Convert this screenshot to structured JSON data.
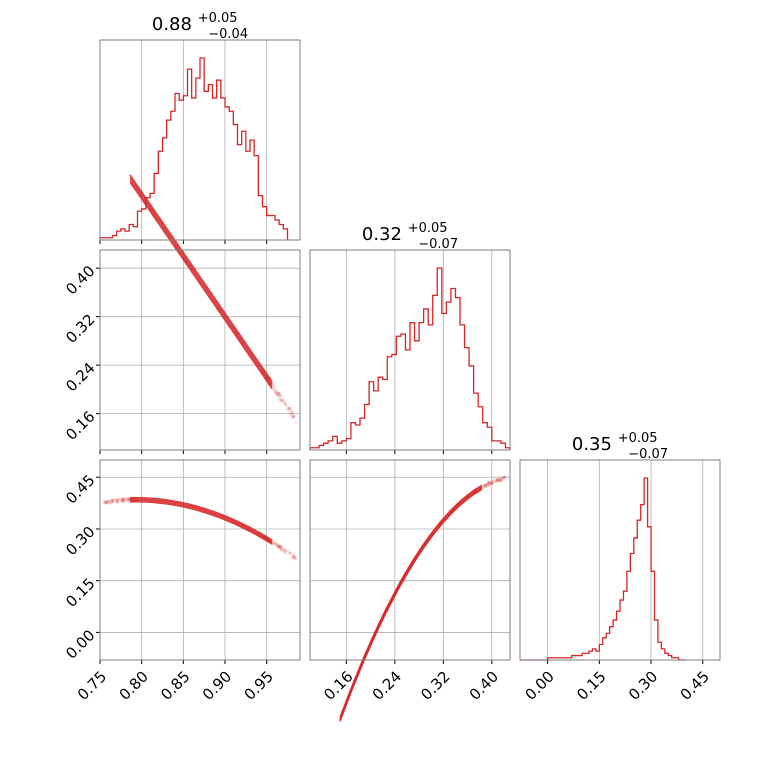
{
  "chart_data": {
    "type": "corner",
    "color": "#d62728",
    "grid": true,
    "params": [
      {
        "range": [
          0.75,
          0.99
        ],
        "ticks": [
          0.75,
          0.8,
          0.85,
          0.9,
          0.95
        ],
        "tick_labels": [
          "0.75",
          "0.80",
          "0.85",
          "0.90",
          "0.95"
        ]
      },
      {
        "range": [
          0.1,
          0.43
        ],
        "ticks": [
          0.16,
          0.24,
          0.32,
          0.4
        ],
        "tick_labels": [
          "0.16",
          "0.24",
          "0.32",
          "0.40"
        ]
      },
      {
        "range": [
          -0.08,
          0.5
        ],
        "ticks": [
          0.0,
          0.15,
          0.3,
          0.45
        ],
        "tick_labels": [
          "0.00",
          "0.15",
          "0.30",
          "0.45"
        ]
      }
    ],
    "titles": [
      {
        "median": "0.88",
        "plus": "+0.05",
        "minus": "−0.04"
      },
      {
        "median": "0.32",
        "plus": "+0.05",
        "minus": "−0.07"
      },
      {
        "median": "0.35",
        "plus": "+0.05",
        "minus": "−0.07"
      }
    ],
    "histograms": [
      {
        "param": 0,
        "edges_start": 0.75,
        "bin_width": 0.005,
        "counts": [
          1,
          1,
          1,
          2,
          4,
          5,
          4,
          7,
          6,
          13,
          14,
          19,
          21,
          30,
          40,
          46,
          54,
          58,
          66,
          63,
          65,
          77,
          64,
          73,
          82,
          67,
          70,
          64,
          72,
          64,
          60,
          58,
          52,
          43,
          49,
          40,
          45,
          38,
          20,
          15,
          11,
          11,
          9,
          7,
          5
        ]
      },
      {
        "param": 1,
        "edges_start": 0.1,
        "bin_width": 0.0075,
        "counts": [
          1,
          1,
          2,
          3,
          4,
          6,
          3,
          4,
          5,
          12,
          11,
          14,
          20,
          30,
          26,
          32,
          31,
          41,
          42,
          50,
          51,
          44,
          56,
          48,
          56,
          62,
          55,
          68,
          80,
          60,
          65,
          71,
          67,
          55,
          45,
          37,
          25,
          19,
          12,
          10,
          4,
          4,
          3,
          1
        ]
      },
      {
        "param": 2,
        "edges_start": -0.08,
        "bin_width": 0.01,
        "counts": [
          0,
          0,
          0,
          0,
          0,
          0,
          0,
          0,
          1,
          1,
          1,
          1,
          1,
          1,
          1,
          2,
          2,
          2,
          3,
          3,
          4,
          5,
          4,
          7,
          10,
          12,
          15,
          18,
          22,
          27,
          31,
          40,
          48,
          55,
          63,
          70,
          82,
          60,
          40,
          18,
          8,
          5,
          3,
          2,
          1,
          1,
          0,
          0
        ]
      }
    ],
    "scatter_relations": [
      {
        "x_param": 0,
        "y_param": 1,
        "relation": "y = 0.36 - 2.0*(x - 0.88)"
      },
      {
        "x_param": 0,
        "y_param": 2,
        "relation": "y = 0.35 - 4.6*(x - 0.88)^2 - 0.8*(x - 0.88)"
      },
      {
        "x_param": 1,
        "y_param": 2,
        "relation": "y = 0.45 - 0.26*(0.43 - x)^1 - 8*(0.43 - x)^2"
      }
    ]
  }
}
